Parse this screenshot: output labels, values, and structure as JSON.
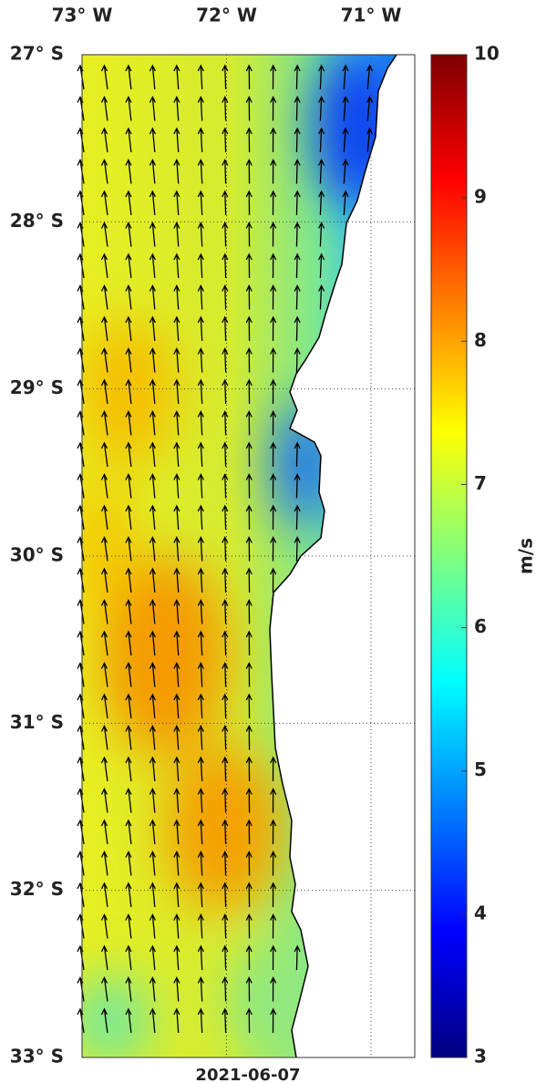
{
  "map": {
    "lon_ticks": [
      {
        "value": -73,
        "label": "73° W"
      },
      {
        "value": -72,
        "label": "72° W"
      },
      {
        "value": -71,
        "label": "71° W"
      }
    ],
    "lat_ticks": [
      {
        "value": -27,
        "label": "27° S"
      },
      {
        "value": -28,
        "label": "28° S"
      },
      {
        "value": -29,
        "label": "29° S"
      },
      {
        "value": -30,
        "label": "30° S"
      },
      {
        "value": -31,
        "label": "31° S"
      },
      {
        "value": -32,
        "label": "32° S"
      },
      {
        "value": -33,
        "label": "33° S"
      }
    ],
    "date": "2021-06-07",
    "colorbar": {
      "label": "m/s",
      "lim": [
        3,
        10
      ],
      "ticks": [
        3,
        4,
        5,
        6,
        7,
        8,
        9,
        10
      ]
    }
  }
}
